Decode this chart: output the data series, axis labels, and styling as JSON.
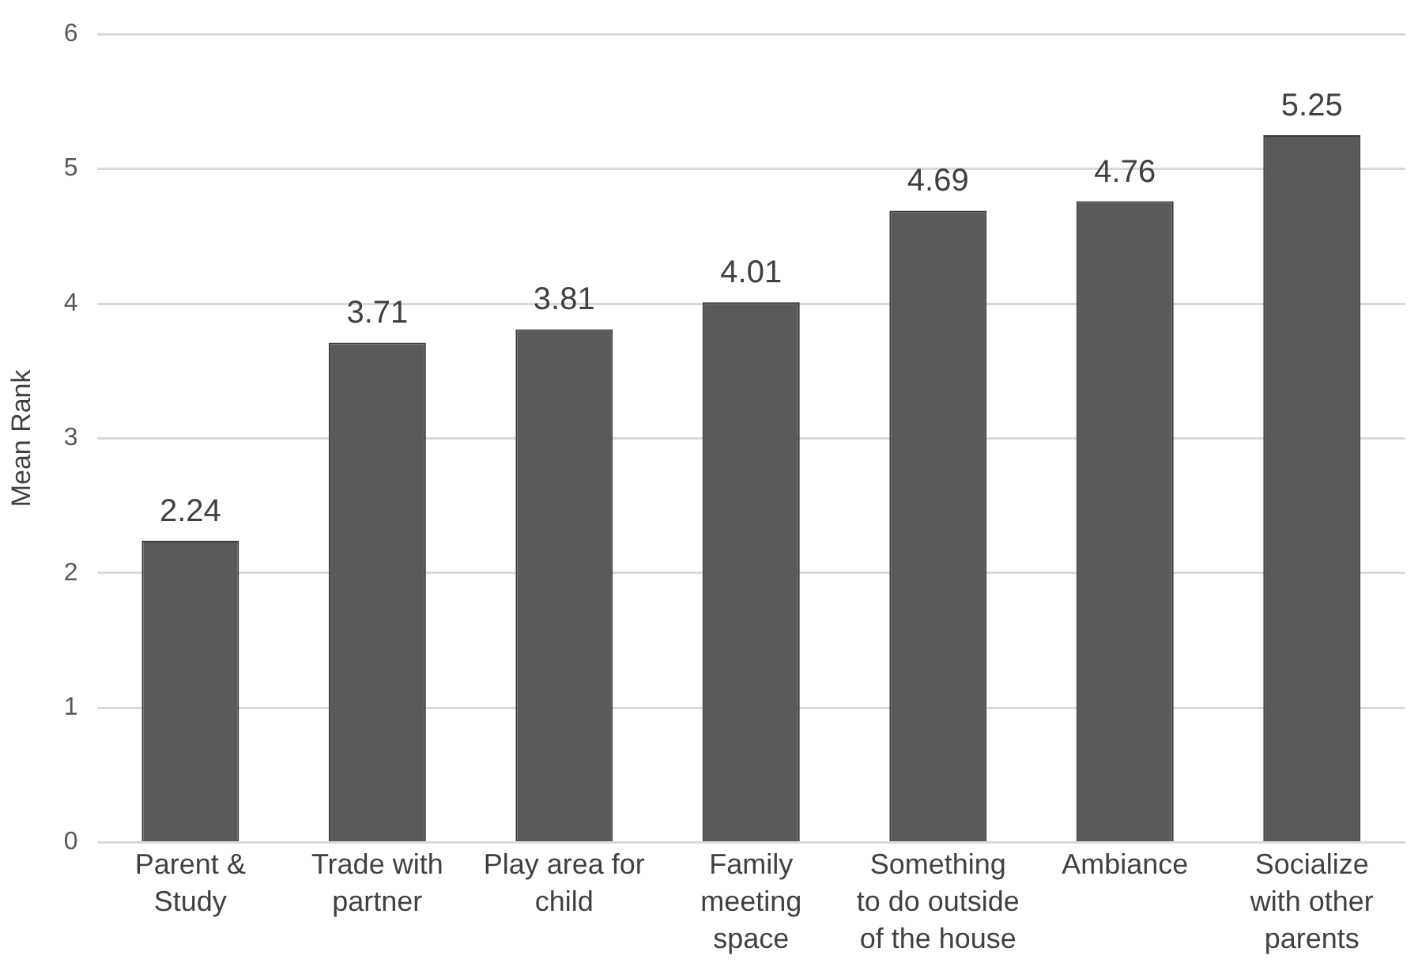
{
  "chart_data": {
    "type": "bar",
    "ylabel": "Mean Rank",
    "categories": [
      "Parent & Study",
      "Trade with partner",
      "Play area for child",
      "Family meeting space",
      "Something to do outside of the house",
      "Ambiance",
      "Socialize with other parents"
    ],
    "values": [
      2.24,
      3.71,
      3.81,
      4.01,
      4.69,
      4.76,
      5.25
    ],
    "color": "#5a5a5a",
    "ylim": [
      0,
      6
    ],
    "yticks": [
      0,
      1,
      2,
      3,
      4,
      5,
      6
    ],
    "grid": "y",
    "data_labels": true,
    "legend": false
  }
}
